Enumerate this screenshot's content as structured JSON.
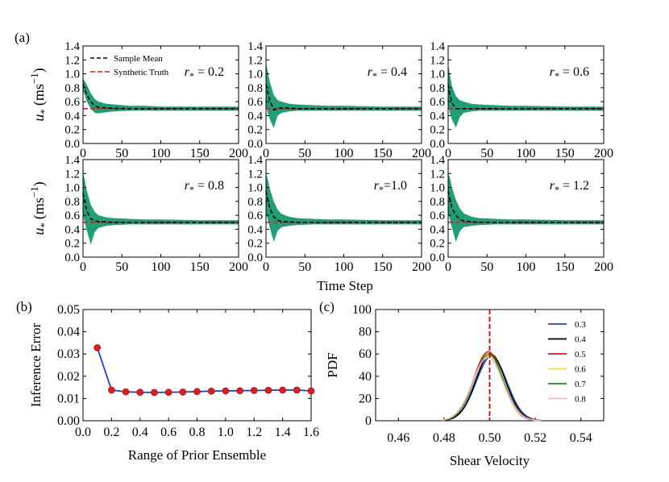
{
  "panel_labels": [
    "(a)",
    "(b)",
    "(c)"
  ],
  "colors": {
    "band": "#1f9f76",
    "mean": "#000000",
    "truth": "#e41a1c",
    "line_b": "#1f3fd6",
    "marker_b": "#e41a1c",
    "vline_c": "#cc0000"
  },
  "chart_data": [
    {
      "type": "area",
      "panel": "(a)",
      "layout": "2x3 grid",
      "ylabel_a": "u",
      "ylabel_sub": "*",
      "ylabel_units": "(ms",
      "ylabel_exp": "−1",
      "ylabel_close": ")",
      "xlabel": "Time Step",
      "xlim": [
        0,
        200
      ],
      "ylim": [
        0,
        1.4
      ],
      "x_ticks": [
        0,
        50,
        100,
        150,
        200
      ],
      "y_ticks": [
        "0.0",
        "0.2",
        "0.4",
        "0.6",
        "0.8",
        "1.0",
        "1.2",
        "1.4"
      ],
      "legend": {
        "placement": "top-left of first panel",
        "entries": [
          "Sample Mean",
          "Synthetic Truth"
        ]
      },
      "truth": 0.5,
      "subplots": [
        {
          "label_r": "r",
          "label_sub": "*",
          "label_val": " = 0.2",
          "x": [
            0,
            2,
            5,
            10,
            15,
            20,
            30,
            40,
            60,
            80,
            100,
            150,
            200
          ],
          "mean": [
            0.85,
            0.78,
            0.7,
            0.6,
            0.54,
            0.52,
            0.51,
            0.505,
            0.5,
            0.5,
            0.5,
            0.5,
            0.5
          ],
          "upper": [
            0.93,
            0.9,
            0.84,
            0.72,
            0.64,
            0.6,
            0.57,
            0.56,
            0.54,
            0.54,
            0.53,
            0.53,
            0.53
          ],
          "lower": [
            0.77,
            0.7,
            0.6,
            0.5,
            0.44,
            0.43,
            0.45,
            0.46,
            0.47,
            0.47,
            0.47,
            0.47,
            0.47
          ]
        },
        {
          "label_r": "r",
          "label_sub": "*",
          "label_val": " = 0.4",
          "x": [
            0,
            2,
            5,
            10,
            15,
            20,
            30,
            40,
            60,
            80,
            100,
            150,
            200
          ],
          "mean": [
            0.85,
            0.75,
            0.62,
            0.48,
            0.5,
            0.51,
            0.505,
            0.5,
            0.5,
            0.5,
            0.5,
            0.5,
            0.5
          ],
          "upper": [
            1.16,
            1.05,
            0.88,
            0.7,
            0.62,
            0.6,
            0.57,
            0.56,
            0.55,
            0.54,
            0.54,
            0.53,
            0.53
          ],
          "lower": [
            0.55,
            0.45,
            0.35,
            0.22,
            0.4,
            0.44,
            0.46,
            0.47,
            0.47,
            0.47,
            0.47,
            0.47,
            0.47
          ]
        },
        {
          "label_r": "r",
          "label_sub": "*",
          "label_val": " = 0.6",
          "x": [
            0,
            2,
            5,
            10,
            15,
            20,
            30,
            40,
            60,
            80,
            100,
            150,
            200
          ],
          "mean": [
            0.85,
            0.72,
            0.58,
            0.5,
            0.5,
            0.5,
            0.5,
            0.5,
            0.5,
            0.5,
            0.5,
            0.5,
            0.5
          ],
          "upper": [
            1.13,
            1.0,
            0.82,
            0.68,
            0.62,
            0.6,
            0.57,
            0.56,
            0.55,
            0.54,
            0.54,
            0.53,
            0.53
          ],
          "lower": [
            0.55,
            0.45,
            0.34,
            0.23,
            0.38,
            0.44,
            0.46,
            0.47,
            0.47,
            0.47,
            0.47,
            0.47,
            0.47
          ]
        },
        {
          "label_r": "r",
          "label_sub": "*",
          "label_val": " = 0.8",
          "x": [
            0,
            2,
            5,
            10,
            15,
            20,
            30,
            40,
            60,
            80,
            100,
            150,
            200
          ],
          "mean": [
            0.92,
            0.82,
            0.66,
            0.55,
            0.52,
            0.51,
            0.505,
            0.5,
            0.5,
            0.5,
            0.5,
            0.5,
            0.5
          ],
          "upper": [
            1.2,
            1.12,
            0.95,
            0.75,
            0.65,
            0.6,
            0.57,
            0.56,
            0.55,
            0.54,
            0.54,
            0.53,
            0.53
          ],
          "lower": [
            0.62,
            0.5,
            0.38,
            0.18,
            0.36,
            0.42,
            0.45,
            0.46,
            0.47,
            0.47,
            0.47,
            0.47,
            0.47
          ]
        },
        {
          "label_r": "r",
          "label_sub": "*",
          "label_val": "=1.0",
          "x": [
            0,
            2,
            5,
            10,
            15,
            20,
            30,
            40,
            60,
            80,
            100,
            150,
            200
          ],
          "mean": [
            0.95,
            0.85,
            0.7,
            0.58,
            0.53,
            0.51,
            0.505,
            0.5,
            0.5,
            0.5,
            0.5,
            0.5,
            0.5
          ],
          "upper": [
            1.2,
            1.13,
            0.98,
            0.8,
            0.68,
            0.62,
            0.58,
            0.56,
            0.55,
            0.54,
            0.54,
            0.53,
            0.53
          ],
          "lower": [
            0.64,
            0.55,
            0.42,
            0.22,
            0.38,
            0.43,
            0.45,
            0.46,
            0.47,
            0.47,
            0.47,
            0.47,
            0.47
          ]
        },
        {
          "label_r": "r",
          "label_sub": "*",
          "label_val": " = 1.2",
          "x": [
            0,
            2,
            5,
            10,
            15,
            20,
            30,
            40,
            60,
            80,
            100,
            150,
            200
          ],
          "mean": [
            0.95,
            0.85,
            0.7,
            0.6,
            0.54,
            0.52,
            0.505,
            0.5,
            0.5,
            0.5,
            0.5,
            0.5,
            0.5
          ],
          "upper": [
            1.2,
            1.15,
            1.0,
            0.82,
            0.7,
            0.63,
            0.58,
            0.56,
            0.55,
            0.54,
            0.54,
            0.53,
            0.53
          ],
          "lower": [
            0.64,
            0.55,
            0.42,
            0.22,
            0.37,
            0.43,
            0.45,
            0.46,
            0.47,
            0.47,
            0.47,
            0.47,
            0.47
          ]
        }
      ]
    },
    {
      "type": "line",
      "panel": "(b)",
      "xlabel": "Range of Prior Ensemble",
      "ylabel": "Inference Error",
      "xlim": [
        0.0,
        1.6
      ],
      "ylim": [
        0.0,
        0.05
      ],
      "x_ticks": [
        "0.0",
        "0.2",
        "0.4",
        "0.6",
        "0.8",
        "1.0",
        "1.2",
        "1.4",
        "1.6"
      ],
      "y_ticks": [
        "0.00",
        "0.01",
        "0.02",
        "0.03",
        "0.04",
        "0.05"
      ],
      "x": [
        0.1,
        0.2,
        0.3,
        0.4,
        0.5,
        0.6,
        0.7,
        0.8,
        0.9,
        1.0,
        1.1,
        1.2,
        1.3,
        1.4,
        1.5,
        1.6
      ],
      "y": [
        0.0328,
        0.0138,
        0.013,
        0.0128,
        0.0127,
        0.0128,
        0.0129,
        0.0131,
        0.0133,
        0.0134,
        0.0135,
        0.0136,
        0.0137,
        0.0138,
        0.0138,
        0.0134
      ]
    },
    {
      "type": "line",
      "panel": "(c)",
      "xlabel": "Shear Velocity",
      "ylabel": "PDF",
      "xlim": [
        0.45,
        0.55
      ],
      "ylim": [
        0,
        100
      ],
      "x_ticks": [
        "0.46",
        "0.48",
        "0.50",
        "0.52",
        "0.54"
      ],
      "y_ticks": [
        "0",
        "20",
        "40",
        "60",
        "80",
        "100"
      ],
      "vline": 0.5,
      "legend": {
        "placement": "top-right"
      },
      "series": [
        {
          "name": "0.3",
          "color": "#1f3fd6",
          "mean": 0.5008,
          "sd": 0.0067,
          "peak": 58
        },
        {
          "name": "0.4",
          "color": "#000000",
          "mean": 0.5004,
          "sd": 0.0065,
          "peak": 60
        },
        {
          "name": "0.5",
          "color": "#e41a1c",
          "mean": 0.4994,
          "sd": 0.0064,
          "peak": 62
        },
        {
          "name": "0.6",
          "color": "#f4e12a",
          "mean": 0.4996,
          "sd": 0.0066,
          "peak": 59
        },
        {
          "name": "0.7",
          "color": "#17931a",
          "mean": 0.4995,
          "sd": 0.0065,
          "peak": 60
        },
        {
          "name": "0.8",
          "color": "#f5b5c4",
          "mean": 0.4992,
          "sd": 0.0067,
          "peak": 57
        }
      ]
    }
  ]
}
